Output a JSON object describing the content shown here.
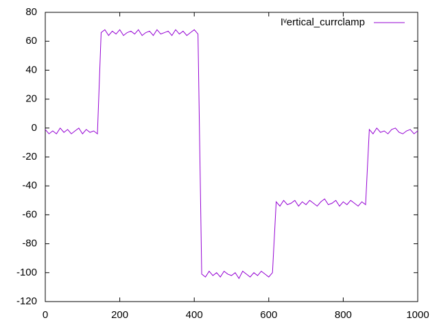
{
  "chart_data": {
    "type": "line",
    "x": [
      0,
      10,
      20,
      30,
      40,
      50,
      60,
      70,
      80,
      90,
      100,
      110,
      120,
      130,
      140,
      150,
      160,
      170,
      180,
      190,
      200,
      210,
      220,
      230,
      240,
      250,
      260,
      270,
      280,
      290,
      300,
      310,
      320,
      330,
      340,
      350,
      360,
      370,
      380,
      390,
      400,
      410,
      420,
      430,
      440,
      450,
      460,
      470,
      480,
      490,
      500,
      510,
      520,
      530,
      540,
      550,
      560,
      570,
      580,
      590,
      600,
      610,
      620,
      630,
      640,
      650,
      660,
      670,
      680,
      690,
      700,
      710,
      720,
      730,
      740,
      750,
      760,
      770,
      780,
      790,
      800,
      810,
      820,
      830,
      840,
      850,
      860,
      870,
      880,
      890,
      900,
      910,
      920,
      930,
      940,
      950,
      960,
      970,
      980,
      990,
      1000
    ],
    "series": [
      {
        "name": "Iᵛertical_currclamp",
        "color": "#9400d3",
        "values": [
          -1,
          -4,
          -2,
          -4,
          0,
          -3,
          -1,
          -4,
          -2,
          0,
          -4,
          -1,
          -3,
          -2,
          -4,
          66,
          68,
          64,
          67,
          65,
          68,
          64,
          66,
          67,
          65,
          68,
          64,
          66,
          67,
          64,
          68,
          65,
          66,
          67,
          64,
          68,
          65,
          67,
          64,
          66,
          68,
          65,
          -101,
          -103,
          -99,
          -102,
          -100,
          -103,
          -99,
          -101,
          -102,
          -100,
          -104,
          -99,
          -101,
          -103,
          -100,
          -102,
          -99,
          -101,
          -103,
          -100,
          -51,
          -54,
          -50,
          -53,
          -52,
          -50,
          -54,
          -51,
          -53,
          -50,
          -52,
          -54,
          -51,
          -49,
          -53,
          -52,
          -50,
          -54,
          -51,
          -53,
          -50,
          -52,
          -54,
          -51,
          -53,
          -1,
          -4,
          0,
          -3,
          -2,
          -4,
          -1,
          0,
          -3,
          -4,
          -2,
          -1,
          -4,
          -2
        ]
      }
    ],
    "xlim": [
      0,
      1000
    ],
    "xticks": [
      0,
      200,
      400,
      600,
      800,
      1000
    ],
    "ylim": [
      -120,
      80
    ],
    "yticks": [
      -120,
      -100,
      -80,
      -60,
      -40,
      -20,
      0,
      20,
      40,
      60,
      80
    ],
    "grid": false,
    "legend": "top-right"
  }
}
